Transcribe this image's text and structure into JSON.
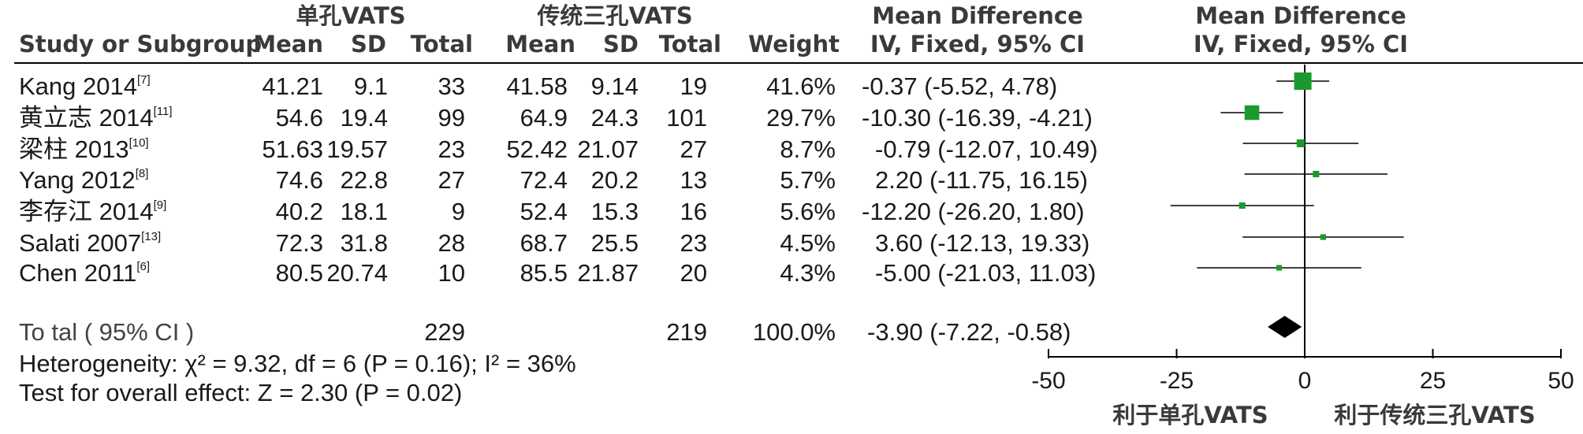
{
  "headers": {
    "group1": "单孔VATS",
    "group2": "传统三孔VATS",
    "study": "Study or Subgroup",
    "mean": "Mean",
    "sd": "SD",
    "total": "Total",
    "weight": "Weight",
    "md_title": "Mean Difference",
    "md_sub": "IV, Fixed, 95% CI",
    "plot_title": "Mean Difference",
    "plot_sub": "IV, Fixed, 95% CI"
  },
  "studies": [
    {
      "name": "Kang 2014",
      "ref": "[7]",
      "m1": "41.21",
      "sd1": "9.1",
      "n1": "33",
      "m2": "41.58",
      "sd2": "9.14",
      "n2": "19",
      "weight": "41.6%",
      "ci_text": "-0.37 (-5.52, 4.78)"
    },
    {
      "name": "黄立志 2014",
      "ref": "[11]",
      "m1": "54.6",
      "sd1": "19.4",
      "n1": "99",
      "m2": "64.9",
      "sd2": "24.3",
      "n2": "101",
      "weight": "29.7%",
      "ci_text": "-10.30 (-16.39, -4.21)"
    },
    {
      "name": "梁柱 2013",
      "ref": "[10]",
      "m1": "51.63",
      "sd1": "19.57",
      "n1": "23",
      "m2": "52.42",
      "sd2": "21.07",
      "n2": "27",
      "weight": "8.7%",
      "ci_text": "-0.79 (-12.07, 10.49)"
    },
    {
      "name": "Yang 2012",
      "ref": "[8]",
      "m1": "74.6",
      "sd1": "22.8",
      "n1": "27",
      "m2": "72.4",
      "sd2": "20.2",
      "n2": "13",
      "weight": "5.7%",
      "ci_text": "2.20 (-11.75, 16.15)"
    },
    {
      "name": "李存江 2014",
      "ref": "[9]",
      "m1": "40.2",
      "sd1": "18.1",
      "n1": "9",
      "m2": "52.4",
      "sd2": "15.3",
      "n2": "16",
      "weight": "5.6%",
      "ci_text": "-12.20 (-26.20, 1.80)"
    },
    {
      "name": "Salati 2007",
      "ref": "[13]",
      "m1": "72.3",
      "sd1": "31.8",
      "n1": "28",
      "m2": "68.7",
      "sd2": "25.5",
      "n2": "23",
      "weight": "4.5%",
      "ci_text": "3.60 (-12.13, 19.33)"
    },
    {
      "name": "Chen 2011",
      "ref": "[6]",
      "m1": "80.5",
      "sd1": "20.74",
      "n1": "10",
      "m2": "85.5",
      "sd2": "21.87",
      "n2": "20",
      "weight": "4.3%",
      "ci_text": "-5.00 (-21.03, 11.03)"
    }
  ],
  "total": {
    "label": "To tal ( 95% CI )",
    "n1": "229",
    "n2": "219",
    "weight": "100.0%",
    "ci_text": "-3.90 (-7.22, -0.58)"
  },
  "heterogeneity": "Heterogeneity: χ² = 9.32, df = 6 (P = 0.16); I² = 36%",
  "overall_effect": "Test for overall effect: Z = 2.30 (P = 0.02)",
  "favours": {
    "left": "利于单孔VATS",
    "right": "利于传统三孔VATS"
  },
  "colors": {
    "box": "#1a9a2e",
    "diamond": "#000000",
    "line": "#000000"
  },
  "chart_data": {
    "type": "forest",
    "xlim": [
      -50,
      50
    ],
    "ticks": [
      -50,
      -25,
      0,
      25,
      50
    ],
    "tick_labels": [
      "-50",
      "-25",
      "0",
      "25",
      "50"
    ],
    "studies": [
      {
        "name": "Kang 2014",
        "md": -0.37,
        "lo": -5.52,
        "hi": 4.78,
        "weight": 41.6
      },
      {
        "name": "黄立志 2014",
        "md": -10.3,
        "lo": -16.39,
        "hi": -4.21,
        "weight": 29.7
      },
      {
        "name": "梁柱 2013",
        "md": -0.79,
        "lo": -12.07,
        "hi": 10.49,
        "weight": 8.7
      },
      {
        "name": "Yang 2012",
        "md": 2.2,
        "lo": -11.75,
        "hi": 16.15,
        "weight": 5.7
      },
      {
        "name": "李存江 2014",
        "md": -12.2,
        "lo": -26.2,
        "hi": 1.8,
        "weight": 5.6
      },
      {
        "name": "Salati 2007",
        "md": 3.6,
        "lo": -12.13,
        "hi": 19.33,
        "weight": 4.5
      },
      {
        "name": "Chen 2011",
        "md": -5.0,
        "lo": -21.03,
        "hi": 11.03,
        "weight": 4.3
      }
    ],
    "overall": {
      "md": -3.9,
      "lo": -7.22,
      "hi": -0.58
    }
  }
}
